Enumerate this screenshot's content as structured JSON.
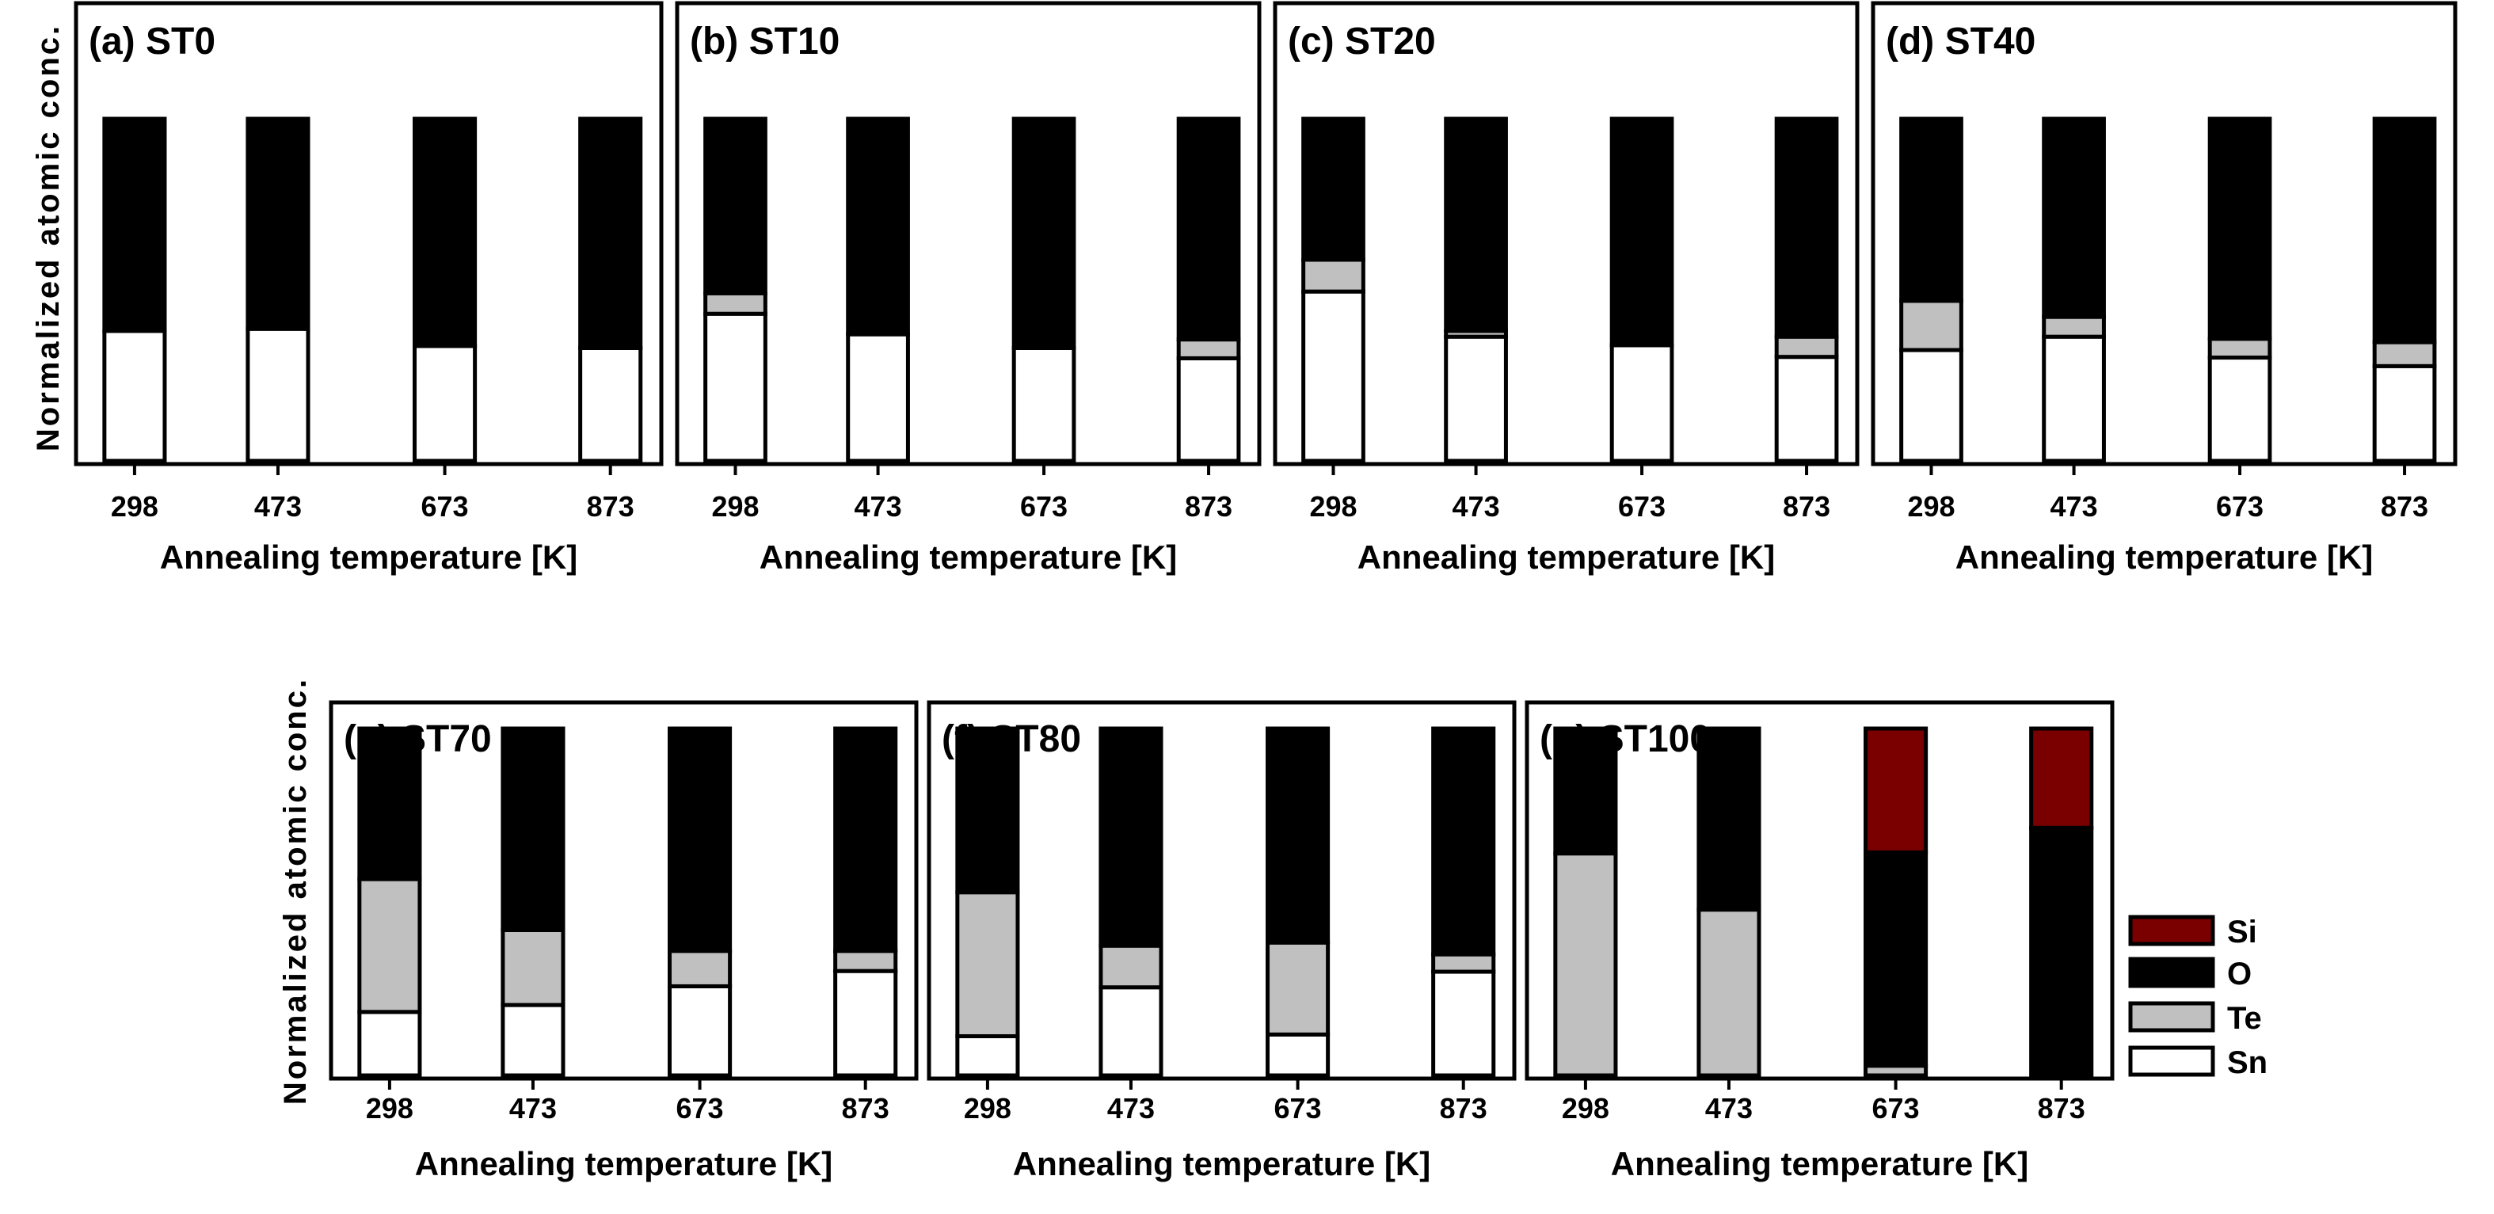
{
  "chart_data": [
    {
      "type": "bar",
      "stacked": true,
      "normalized": true,
      "title": "(a) ST0",
      "xlabel": "Annealing temperature [K]",
      "ylabel": "Normalized atomic conc.",
      "categories": [
        "298",
        "473",
        "673",
        "873"
      ],
      "ylim": [
        0,
        1
      ],
      "series": [
        {
          "name": "Sn",
          "values": [
            0.38,
            0.386,
            0.336,
            0.33
          ]
        },
        {
          "name": "Te",
          "values": [
            0,
            0,
            0,
            0
          ]
        },
        {
          "name": "O",
          "values": [
            0.62,
            0.614,
            0.664,
            0.67
          ]
        },
        {
          "name": "Si",
          "values": [
            0,
            0,
            0,
            0
          ]
        }
      ]
    },
    {
      "type": "bar",
      "stacked": true,
      "normalized": true,
      "title": "(b) ST10",
      "xlabel": "Annealing temperature [K]",
      "categories": [
        "298",
        "473",
        "673",
        "873"
      ],
      "ylim": [
        0,
        1
      ],
      "series": [
        {
          "name": "Sn",
          "values": [
            0.43,
            0.37,
            0.33,
            0.3
          ]
        },
        {
          "name": "Te",
          "values": [
            0.06,
            0,
            0,
            0.055
          ]
        },
        {
          "name": "O",
          "values": [
            0.51,
            0.63,
            0.67,
            0.645
          ]
        },
        {
          "name": "Si",
          "values": [
            0,
            0,
            0,
            0
          ]
        }
      ]
    },
    {
      "type": "bar",
      "stacked": true,
      "normalized": true,
      "title": "(c) ST20",
      "xlabel": "Annealing temperature [K]",
      "categories": [
        "298",
        "473",
        "673",
        "873"
      ],
      "ylim": [
        0,
        1
      ],
      "series": [
        {
          "name": "Sn",
          "values": [
            0.495,
            0.363,
            0.338,
            0.304
          ]
        },
        {
          "name": "Te",
          "values": [
            0.093,
            0.017,
            0,
            0.059
          ]
        },
        {
          "name": "O",
          "values": [
            0.412,
            0.62,
            0.662,
            0.637
          ]
        },
        {
          "name": "Si",
          "values": [
            0,
            0,
            0,
            0
          ]
        }
      ]
    },
    {
      "type": "bar",
      "stacked": true,
      "normalized": true,
      "title": "(d) ST40",
      "xlabel": "Annealing temperature [K]",
      "categories": [
        "298",
        "473",
        "673",
        "873"
      ],
      "ylim": [
        0,
        1
      ],
      "series": [
        {
          "name": "Sn",
          "values": [
            0.324,
            0.363,
            0.302,
            0.277
          ]
        },
        {
          "name": "Te",
          "values": [
            0.144,
            0.058,
            0.055,
            0.07
          ]
        },
        {
          "name": "O",
          "values": [
            0.532,
            0.579,
            0.643,
            0.653
          ]
        },
        {
          "name": "Si",
          "values": [
            0,
            0,
            0,
            0
          ]
        }
      ]
    },
    {
      "type": "bar",
      "stacked": true,
      "normalized": true,
      "title": "(e) ST70",
      "xlabel": "Annealing temperature [K]",
      "ylabel": "Normalized atomic conc.",
      "categories": [
        "298",
        "473",
        "673",
        "873"
      ],
      "ylim": [
        0,
        1
      ],
      "series": [
        {
          "name": "Sn",
          "values": [
            0.183,
            0.203,
            0.257,
            0.301
          ]
        },
        {
          "name": "Te",
          "values": [
            0.383,
            0.216,
            0.102,
            0.058
          ]
        },
        {
          "name": "O",
          "values": [
            0.434,
            0.581,
            0.641,
            0.641
          ]
        },
        {
          "name": "Si",
          "values": [
            0,
            0,
            0,
            0
          ]
        }
      ]
    },
    {
      "type": "bar",
      "stacked": true,
      "normalized": true,
      "title": "(f) ST80",
      "xlabel": "Annealing temperature [K]",
      "categories": [
        "298",
        "473",
        "673",
        "873"
      ],
      "ylim": [
        0,
        1
      ],
      "series": [
        {
          "name": "Sn",
          "values": [
            0.113,
            0.254,
            0.118,
            0.299
          ]
        },
        {
          "name": "Te",
          "values": [
            0.415,
            0.12,
            0.265,
            0.05
          ]
        },
        {
          "name": "O",
          "values": [
            0.472,
            0.626,
            0.617,
            0.651
          ]
        },
        {
          "name": "Si",
          "values": [
            0,
            0,
            0,
            0
          ]
        }
      ]
    },
    {
      "type": "bar",
      "stacked": true,
      "normalized": true,
      "title": "(g) ST100",
      "xlabel": "Annealing temperature [K]",
      "categories": [
        "298",
        "473",
        "673",
        "873"
      ],
      "ylim": [
        0,
        1
      ],
      "series": [
        {
          "name": "Sn",
          "values": [
            0,
            0,
            0,
            0
          ]
        },
        {
          "name": "Te",
          "values": [
            0.64,
            0.478,
            0.028,
            0
          ]
        },
        {
          "name": "O",
          "values": [
            0.36,
            0.522,
            0.615,
            0.714
          ]
        },
        {
          "name": "Si",
          "values": [
            0,
            0,
            0.357,
            0.286
          ]
        }
      ]
    }
  ],
  "legend": {
    "placement": "right",
    "entries": [
      "Si",
      "O",
      "Te",
      "Sn"
    ]
  },
  "colors": {
    "Si": "#7a0000",
    "O": "#000000",
    "Te": "#c0c0c0",
    "Sn": "#ffffff"
  }
}
